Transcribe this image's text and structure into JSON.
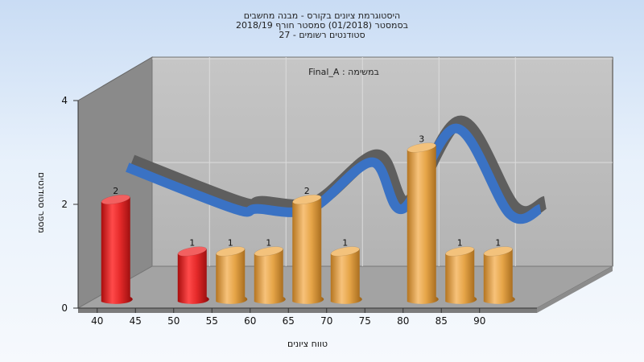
{
  "titles": {
    "line1": "היסטוגרמת ציונים בקורס - מבנה מחשבים",
    "line2": "בסמסטר  (01/2018)  סמסטר חורף 2018/19",
    "line3": "סטודנטים רשומים - 27"
  },
  "chart_data": {
    "type": "bar",
    "series_label": "Final_A : במשימה",
    "categories": [
      "40",
      "45",
      "50",
      "55",
      "60",
      "65",
      "70",
      "75",
      "80",
      "85",
      "90"
    ],
    "bars": [
      {
        "category": "40",
        "value": 2,
        "color": "red"
      },
      {
        "category": "50",
        "value": 1,
        "color": "red"
      },
      {
        "category": "55",
        "value": 1,
        "color": "orange"
      },
      {
        "category": "60",
        "value": 1,
        "color": "orange"
      },
      {
        "category": "65",
        "value": 2,
        "color": "orange"
      },
      {
        "category": "70",
        "value": 1,
        "color": "orange"
      },
      {
        "category": "80",
        "value": 3,
        "color": "orange"
      },
      {
        "category": "85",
        "value": 1,
        "color": "orange"
      },
      {
        "category": "90",
        "value": 1,
        "color": "orange"
      }
    ],
    "curve": [
      {
        "x": 41.0,
        "y": 2.35
      },
      {
        "x": 55.0,
        "y": 1.55
      },
      {
        "x": 58.0,
        "y": 1.55
      },
      {
        "x": 65.0,
        "y": 1.55
      },
      {
        "x": 73.0,
        "y": 2.45
      },
      {
        "x": 77.0,
        "y": 1.55
      },
      {
        "x": 84.0,
        "y": 3.1
      },
      {
        "x": 91.0,
        "y": 1.45
      },
      {
        "x": 95.0,
        "y": 1.55
      }
    ],
    "xlabel": "טווח ציונים",
    "ylabel": "מספר סטודנטים",
    "yticks": [
      0,
      2,
      4
    ],
    "ylim": [
      0,
      4
    ],
    "xlim": [
      37.5,
      97.5
    ],
    "colors": {
      "red": "#e52a2a",
      "orange": "#e6a548",
      "curve_front": "#3a72c4",
      "curve_back": "#5e5e5e",
      "wall": "#bcbcbc",
      "side_wall": "#8a8a8a"
    }
  }
}
